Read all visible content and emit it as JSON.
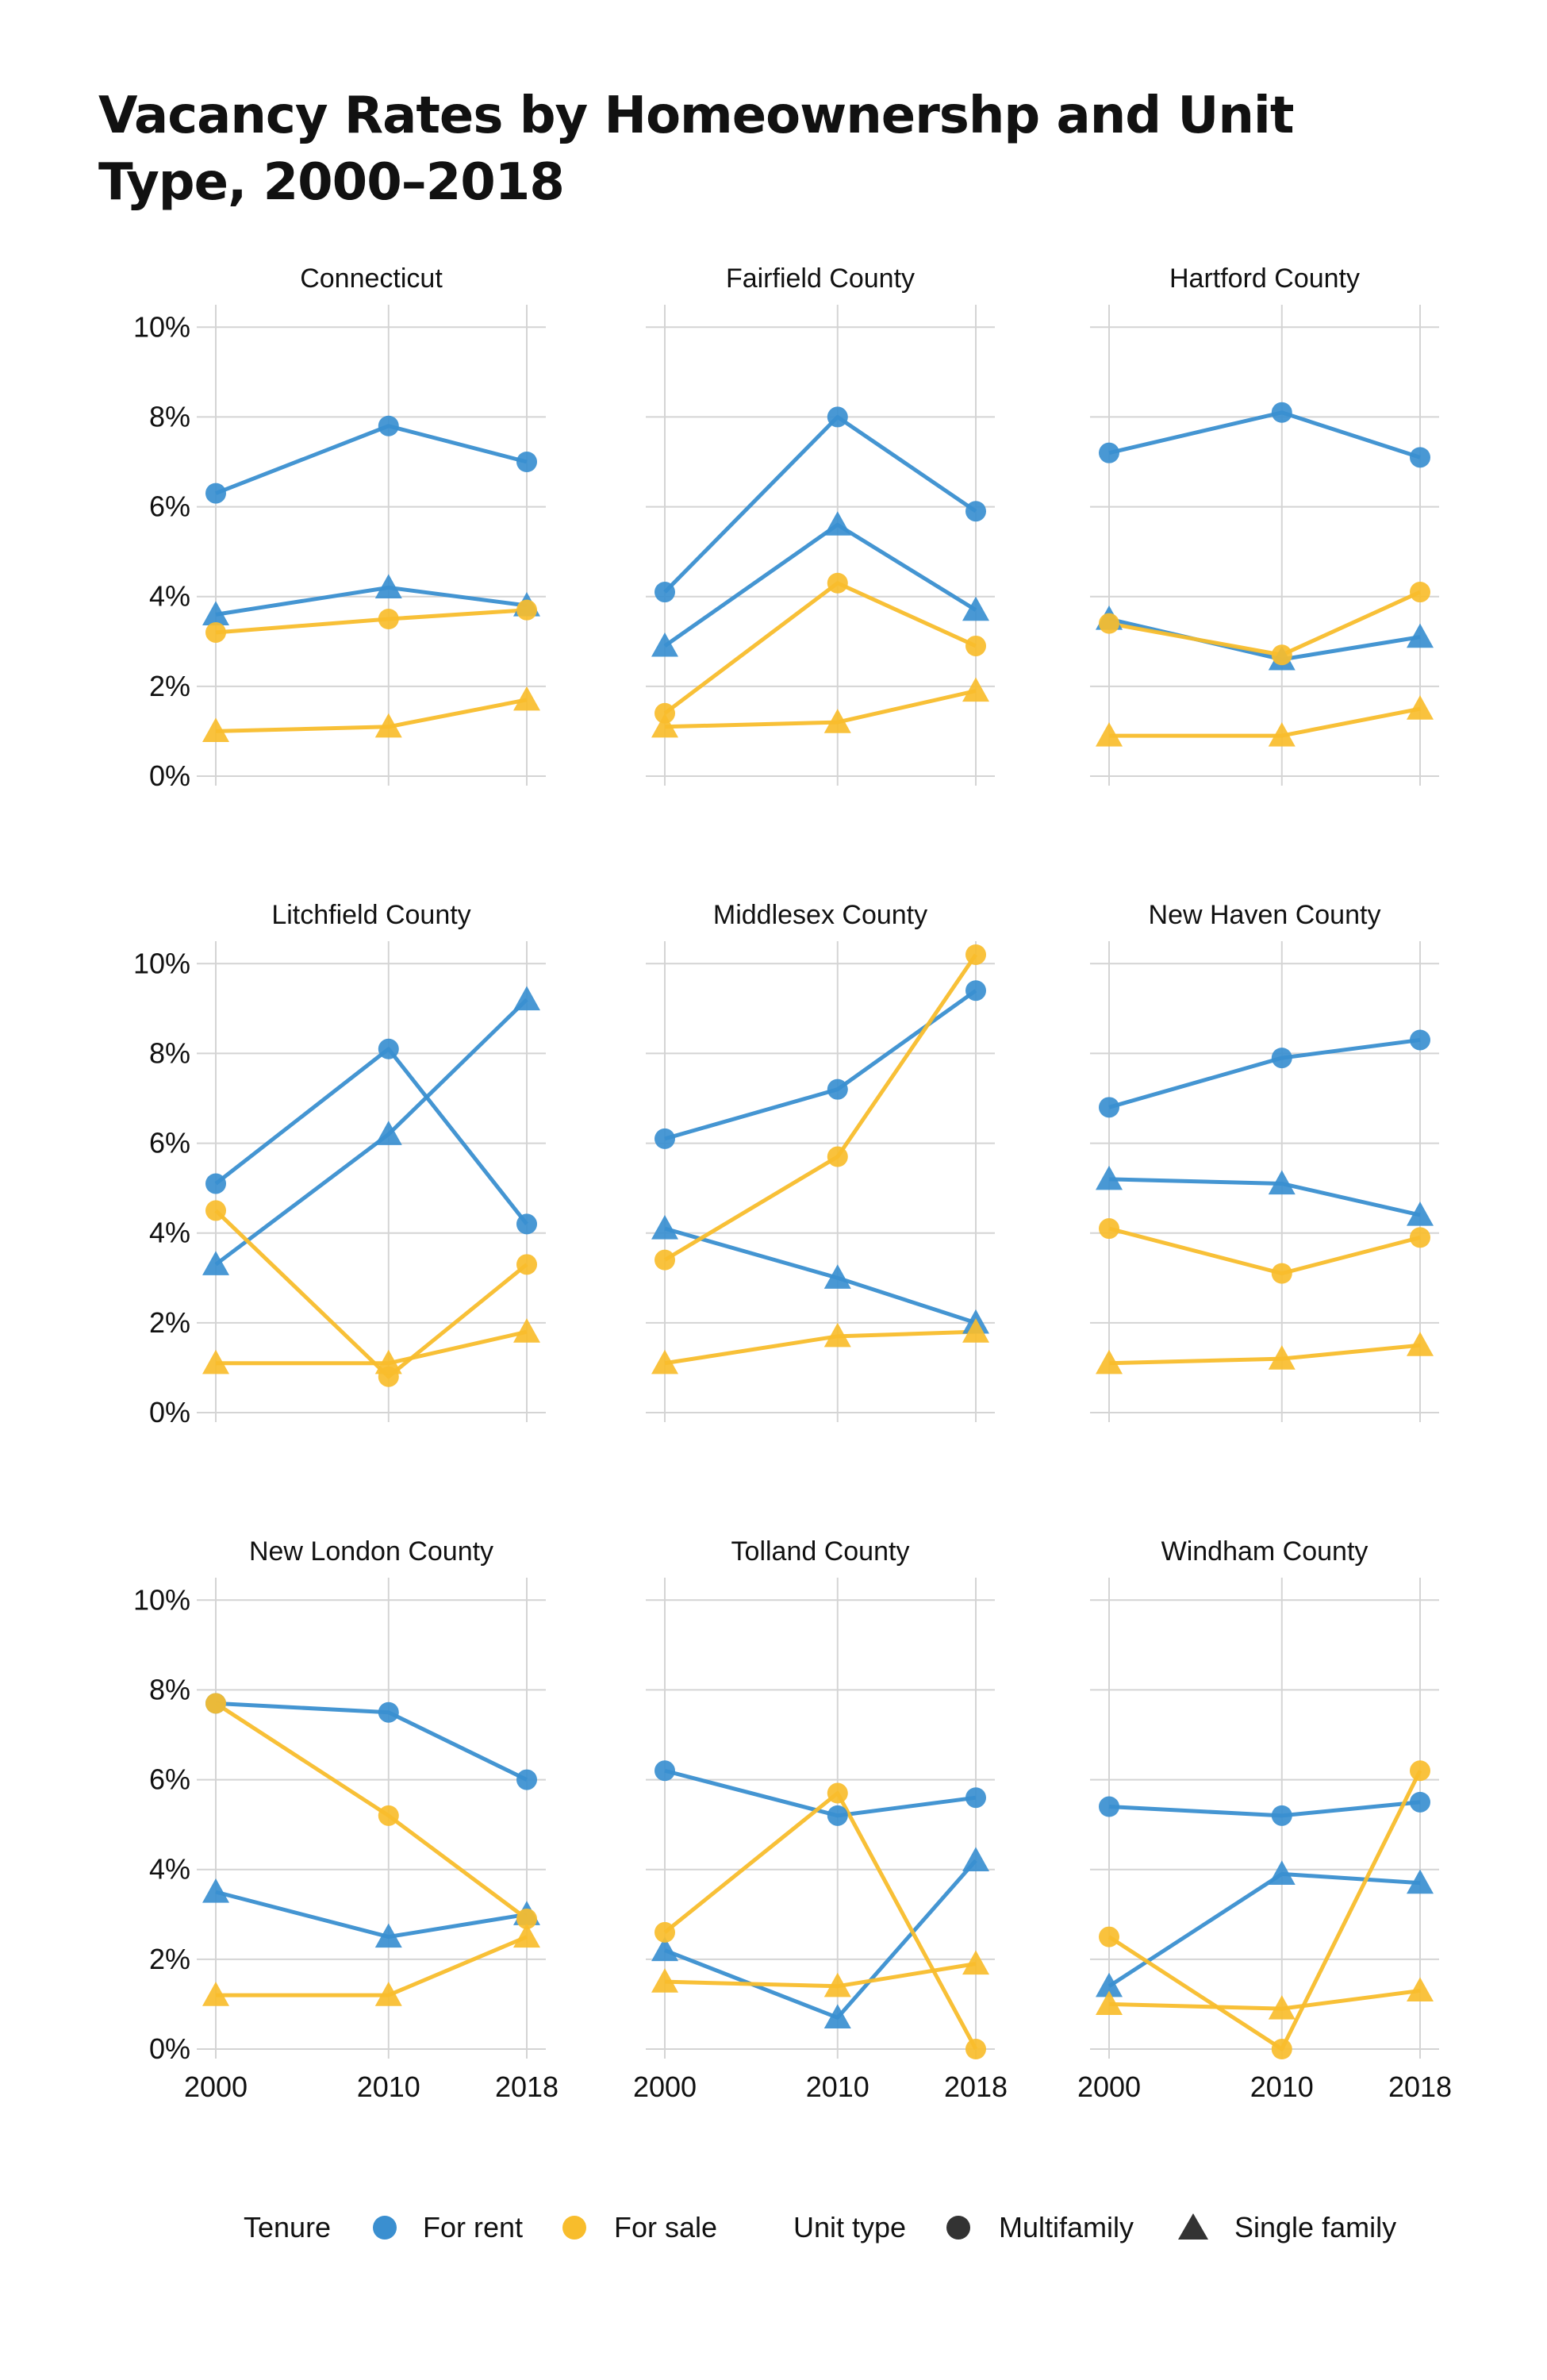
{
  "chart_data": {
    "type": "line",
    "title": "Vacancy Rates by Homeownershp and Unit Type, 2000–2018",
    "x": [
      2000,
      2010,
      2018
    ],
    "x_tick_labels": [
      "2000",
      "2010",
      "2018"
    ],
    "y_tick_labels": [
      "0%",
      "2%",
      "4%",
      "6%",
      "8%",
      "10%"
    ],
    "ylim": [
      0,
      10.5
    ],
    "y_unit": "%",
    "grid": true,
    "legend_position": "bottom",
    "legend": {
      "tenure_title": "Tenure",
      "tenure": [
        {
          "label": "For rent",
          "color": "#3a8fd0"
        },
        {
          "label": "For sale",
          "color": "#f8bd2c"
        }
      ],
      "unit_type_title": "Unit type",
      "unit_type": [
        {
          "label": "Multifamily",
          "shape": "circle"
        },
        {
          "label": "Single family",
          "shape": "triangle"
        }
      ]
    },
    "colors": {
      "for_rent": "#3a8fd0",
      "for_sale": "#f8bd2c",
      "grid": "#d4d4d4"
    },
    "panels": [
      {
        "name": "Connecticut",
        "series": [
          {
            "tenure": "For rent",
            "unit": "Multifamily",
            "values": [
              6.3,
              7.8,
              7.0
            ]
          },
          {
            "tenure": "For rent",
            "unit": "Single family",
            "values": [
              3.6,
              4.2,
              3.8
            ]
          },
          {
            "tenure": "For sale",
            "unit": "Multifamily",
            "values": [
              3.2,
              3.5,
              3.7
            ]
          },
          {
            "tenure": "For sale",
            "unit": "Single family",
            "values": [
              1.0,
              1.1,
              1.7
            ]
          }
        ]
      },
      {
        "name": "Fairfield County",
        "series": [
          {
            "tenure": "For rent",
            "unit": "Multifamily",
            "values": [
              4.1,
              8.0,
              5.9
            ]
          },
          {
            "tenure": "For rent",
            "unit": "Single family",
            "values": [
              2.9,
              5.6,
              3.7
            ]
          },
          {
            "tenure": "For sale",
            "unit": "Multifamily",
            "values": [
              1.4,
              4.3,
              2.9
            ]
          },
          {
            "tenure": "For sale",
            "unit": "Single family",
            "values": [
              1.1,
              1.2,
              1.9
            ]
          }
        ]
      },
      {
        "name": "Hartford County",
        "series": [
          {
            "tenure": "For rent",
            "unit": "Multifamily",
            "values": [
              7.2,
              8.1,
              7.1
            ]
          },
          {
            "tenure": "For rent",
            "unit": "Single family",
            "values": [
              3.5,
              2.6,
              3.1
            ]
          },
          {
            "tenure": "For sale",
            "unit": "Multifamily",
            "values": [
              3.4,
              2.7,
              4.1
            ]
          },
          {
            "tenure": "For sale",
            "unit": "Single family",
            "values": [
              0.9,
              0.9,
              1.5
            ]
          }
        ]
      },
      {
        "name": "Litchfield County",
        "series": [
          {
            "tenure": "For rent",
            "unit": "Multifamily",
            "values": [
              5.1,
              8.1,
              4.2
            ]
          },
          {
            "tenure": "For rent",
            "unit": "Single family",
            "values": [
              3.3,
              6.2,
              9.2
            ]
          },
          {
            "tenure": "For sale",
            "unit": "Multifamily",
            "values": [
              4.5,
              0.8,
              3.3
            ]
          },
          {
            "tenure": "For sale",
            "unit": "Single family",
            "values": [
              1.1,
              1.1,
              1.8
            ]
          }
        ]
      },
      {
        "name": "Middlesex County",
        "series": [
          {
            "tenure": "For rent",
            "unit": "Multifamily",
            "values": [
              6.1,
              7.2,
              9.4
            ]
          },
          {
            "tenure": "For rent",
            "unit": "Single family",
            "values": [
              4.1,
              3.0,
              2.0
            ]
          },
          {
            "tenure": "For sale",
            "unit": "Multifamily",
            "values": [
              3.4,
              5.7,
              10.2
            ]
          },
          {
            "tenure": "For sale",
            "unit": "Single family",
            "values": [
              1.1,
              1.7,
              1.8
            ]
          }
        ]
      },
      {
        "name": "New Haven County",
        "series": [
          {
            "tenure": "For rent",
            "unit": "Multifamily",
            "values": [
              6.8,
              7.9,
              8.3
            ]
          },
          {
            "tenure": "For rent",
            "unit": "Single family",
            "values": [
              5.2,
              5.1,
              4.4
            ]
          },
          {
            "tenure": "For sale",
            "unit": "Multifamily",
            "values": [
              4.1,
              3.1,
              3.9
            ]
          },
          {
            "tenure": "For sale",
            "unit": "Single family",
            "values": [
              1.1,
              1.2,
              1.5
            ]
          }
        ]
      },
      {
        "name": "New London County",
        "series": [
          {
            "tenure": "For rent",
            "unit": "Multifamily",
            "values": [
              7.7,
              7.5,
              6.0
            ]
          },
          {
            "tenure": "For rent",
            "unit": "Single family",
            "values": [
              3.5,
              2.5,
              3.0
            ]
          },
          {
            "tenure": "For sale",
            "unit": "Multifamily",
            "values": [
              7.7,
              5.2,
              2.9
            ]
          },
          {
            "tenure": "For sale",
            "unit": "Single family",
            "values": [
              1.2,
              1.2,
              2.5
            ]
          }
        ]
      },
      {
        "name": "Tolland County",
        "series": [
          {
            "tenure": "For rent",
            "unit": "Multifamily",
            "values": [
              6.2,
              5.2,
              5.6
            ]
          },
          {
            "tenure": "For rent",
            "unit": "Single family",
            "values": [
              2.2,
              0.7,
              4.2
            ]
          },
          {
            "tenure": "For sale",
            "unit": "Multifamily",
            "values": [
              2.6,
              5.7,
              0.0
            ]
          },
          {
            "tenure": "For sale",
            "unit": "Single family",
            "values": [
              1.5,
              1.4,
              1.9
            ]
          }
        ]
      },
      {
        "name": "Windham County",
        "series": [
          {
            "tenure": "For rent",
            "unit": "Multifamily",
            "values": [
              5.4,
              5.2,
              5.5
            ]
          },
          {
            "tenure": "For rent",
            "unit": "Single family",
            "values": [
              1.4,
              3.9,
              3.7
            ]
          },
          {
            "tenure": "For sale",
            "unit": "Multifamily",
            "values": [
              2.5,
              0.0,
              6.2
            ]
          },
          {
            "tenure": "For sale",
            "unit": "Single family",
            "values": [
              1.0,
              0.9,
              1.3
            ]
          }
        ]
      }
    ]
  }
}
